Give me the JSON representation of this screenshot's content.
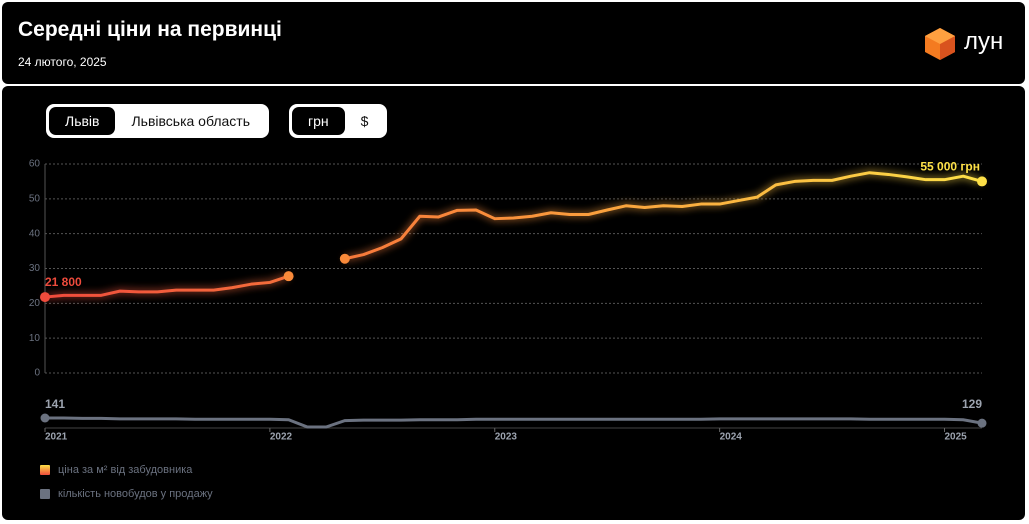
{
  "header": {
    "title": "Середні ціни на первинці",
    "date": "24 лютого, 2025",
    "logo": "лун"
  },
  "controls": {
    "region": [
      "Львів",
      "Львівська область"
    ],
    "currency": [
      "грн",
      "$"
    ]
  },
  "chart_data": {
    "type": "line",
    "x": [
      2021,
      2021.0833,
      2021.1667,
      2021.25,
      2021.3333,
      2021.4167,
      2021.5,
      2021.5833,
      2021.6667,
      2021.75,
      2021.8333,
      2021.9167,
      2022,
      2022.0833,
      2022.1667,
      2022.25,
      2022.3333,
      2022.4167,
      2022.5,
      2022.5833,
      2022.6667,
      2022.75,
      2022.8333,
      2022.9167,
      2023,
      2023.0833,
      2023.1667,
      2023.25,
      2023.3333,
      2023.4167,
      2023.5,
      2023.5833,
      2023.6667,
      2023.75,
      2023.8333,
      2023.9167,
      2024,
      2024.0833,
      2024.1667,
      2024.25,
      2024.3333,
      2024.4167,
      2024.5,
      2024.5833,
      2024.6667,
      2024.75,
      2024.8333,
      2024.9167,
      2025,
      2025.0833,
      2025.1667
    ],
    "xlim": [
      2021,
      2025.1667
    ],
    "xticks": [
      2021,
      2022,
      2023,
      2024,
      2025
    ],
    "ylim": [
      0,
      60
    ],
    "yticks": [
      0,
      10,
      20,
      30,
      40,
      50,
      60
    ],
    "grid": true,
    "series": [
      {
        "name": "ціна за м² від забудовника",
        "colors": [
          "#ef4b3c",
          "#f98a3a",
          "#fde047"
        ],
        "values": [
          21.8,
          22.3,
          22.3,
          22.3,
          23.5,
          23.3,
          23.3,
          23.8,
          23.8,
          23.8,
          24.5,
          25.5,
          26,
          27.8,
          null,
          null,
          32.8,
          34,
          36,
          38.5,
          45,
          44.8,
          46.7,
          46.8,
          44.3,
          44.5,
          45,
          46,
          45.5,
          45.5,
          46.8,
          48,
          47.5,
          48,
          47.8,
          48.5,
          48.5,
          49.5,
          50.5,
          54,
          55,
          55.3,
          55.3,
          56.5,
          57.5,
          57,
          56.3,
          55.5,
          55.5,
          56.5,
          55
        ],
        "value_labels": [
          "21 800",
          null,
          null,
          null,
          null,
          null,
          null,
          null,
          null,
          null,
          null,
          null,
          null,
          null,
          null,
          null,
          null,
          null,
          null,
          null,
          null,
          null,
          null,
          null,
          null,
          null,
          null,
          null,
          null,
          null,
          null,
          null,
          null,
          null,
          null,
          null,
          null,
          null,
          null,
          null,
          null,
          null,
          null,
          null,
          null,
          null,
          null,
          null,
          null,
          null,
          "55 000 грн"
        ]
      },
      {
        "name": "кількість новобудов у продажу",
        "color": "#6b7280",
        "values": [
          141,
          141,
          140,
          140,
          139,
          139,
          139,
          139,
          138,
          138,
          138,
          138,
          138,
          137,
          120,
          120,
          135,
          136,
          136,
          136,
          137,
          137,
          137,
          138,
          138,
          138,
          138,
          138,
          138,
          138,
          138,
          138,
          138,
          138,
          138,
          138,
          139,
          139,
          139,
          139,
          139,
          139,
          139,
          139,
          138,
          138,
          138,
          138,
          138,
          137,
          129
        ]
      }
    ]
  }
}
